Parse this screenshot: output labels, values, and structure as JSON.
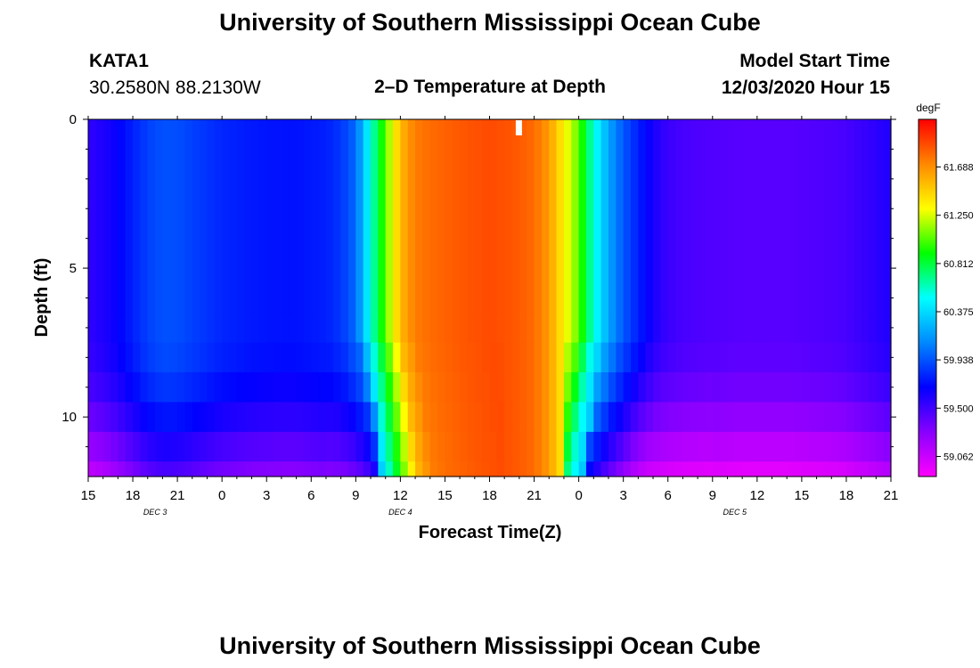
{
  "header": {
    "title": "University of Southern Mississippi Ocean Cube",
    "station_id": "KATA1",
    "coordinates": "30.2580N 88.2130W",
    "subtitle": "2–D Temperature at Depth",
    "model_start_label": "Model Start Time",
    "model_start_value": "12/03/2020 Hour 15"
  },
  "footer": {
    "title": "University of Southern Mississippi Ocean Cube"
  },
  "chart_data": {
    "type": "heatmap",
    "title": "2–D Temperature at Depth",
    "xlabel": "Forecast Time(Z)",
    "ylabel": "Depth (ft)",
    "x_unit": "hours since 12/03/2020 15Z",
    "xlim": [
      0,
      54
    ],
    "ylim": [
      0,
      12
    ],
    "x_ticks": [
      {
        "hour": 0,
        "label": "15"
      },
      {
        "hour": 3,
        "label": "18"
      },
      {
        "hour": 6,
        "label": "21"
      },
      {
        "hour": 9,
        "label": "0"
      },
      {
        "hour": 12,
        "label": "3"
      },
      {
        "hour": 15,
        "label": "6"
      },
      {
        "hour": 18,
        "label": "9"
      },
      {
        "hour": 21,
        "label": "12"
      },
      {
        "hour": 24,
        "label": "15"
      },
      {
        "hour": 27,
        "label": "18"
      },
      {
        "hour": 30,
        "label": "21"
      },
      {
        "hour": 33,
        "label": "0"
      },
      {
        "hour": 36,
        "label": "3"
      },
      {
        "hour": 39,
        "label": "6"
      },
      {
        "hour": 42,
        "label": "9"
      },
      {
        "hour": 45,
        "label": "12"
      },
      {
        "hour": 48,
        "label": "15"
      },
      {
        "hour": 51,
        "label": "18"
      },
      {
        "hour": 54,
        "label": "21"
      }
    ],
    "date_labels": [
      {
        "hour": 4.5,
        "label": "DEC 3"
      },
      {
        "hour": 21,
        "label": "DEC 4"
      },
      {
        "hour": 43.5,
        "label": "DEC 5"
      }
    ],
    "y_ticks": [
      {
        "depth": 0,
        "label": "0"
      },
      {
        "depth": 5,
        "label": "5"
      },
      {
        "depth": 10,
        "label": "10"
      }
    ],
    "depth_levels": [
      0,
      6.5,
      7.5,
      8.5,
      9.5,
      10.5,
      11.5,
      12
    ],
    "temperature_profile_hourly": [
      59.55,
      59.6,
      59.68,
      59.78,
      59.88,
      59.93,
      59.92,
      59.88,
      59.84,
      59.8,
      59.78,
      59.76,
      59.75,
      59.74,
      59.74,
      59.76,
      59.78,
      59.85,
      60.0,
      60.55,
      61.05,
      61.55,
      61.75,
      61.8,
      61.83,
      61.86,
      61.88,
      61.9,
      61.88,
      61.85,
      61.8,
      61.65,
      61.35,
      61.05,
      60.55,
      60.2,
      59.95,
      59.78,
      59.62,
      59.52,
      59.48,
      59.46,
      59.45,
      59.44,
      59.43,
      59.43,
      59.43,
      59.43,
      59.44,
      59.45,
      59.46,
      59.48,
      59.52,
      59.56,
      59.6
    ],
    "colorbar": {
      "unit": "degF",
      "min": 58.88,
      "max": 62.12,
      "tick_values": [
        61.688,
        61.25,
        60.812,
        60.375,
        59.938,
        59.5,
        59.062
      ],
      "tick_labels": [
        "61.688",
        "61.250",
        "60.812",
        "60.375",
        "59.938",
        "59.500",
        "59.062"
      ],
      "colormap": [
        "#ff00ff",
        "#8800ff",
        "#0000ff",
        "#0088ff",
        "#00ffff",
        "#00ff00",
        "#ffff00",
        "#ff8800",
        "#ff0000"
      ]
    },
    "current_time_marker_hour": 29
  }
}
